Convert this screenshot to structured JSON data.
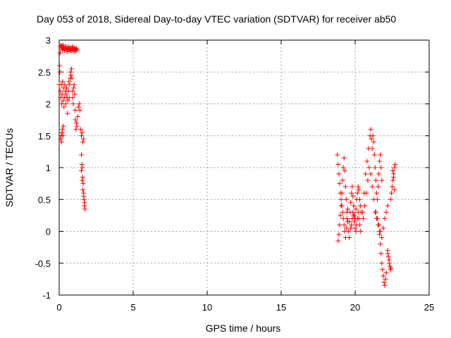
{
  "chart_data": {
    "type": "scatter",
    "title": "Day 053 of 2018, Sidereal Day-to-day VTEC variation (SDTVAR) for receiver ab50",
    "xlabel": "GPS time / hours",
    "ylabel": "SDTVAR / TECUs",
    "xlim": [
      0,
      25
    ],
    "ylim": [
      -1,
      3
    ],
    "xticks": [
      0,
      5,
      10,
      15,
      20,
      25
    ],
    "yticks": [
      -1,
      -0.5,
      0,
      0.5,
      1,
      1.5,
      2,
      2.5,
      3
    ],
    "xtick_labels": [
      "0",
      "5",
      "10",
      "15",
      "20",
      "25"
    ],
    "ytick_labels": [
      "-1",
      "-0.5",
      "0",
      "0.5",
      "1",
      "1.5",
      "2",
      "2.5",
      "3"
    ],
    "grid": true,
    "marker": "+",
    "color": "#ff0000",
    "series": [
      {
        "name": "SDTVAR",
        "x": [
          0.0,
          0.03,
          0.06,
          0.09,
          0.12,
          0.15,
          0.18,
          0.21,
          0.24,
          0.27,
          0.3,
          0.33,
          0.36,
          0.4,
          0.44,
          0.48,
          0.52,
          0.56,
          0.6,
          0.64,
          0.68,
          0.72,
          0.76,
          0.8,
          0.84,
          0.88,
          0.92,
          0.96,
          1.0,
          1.04,
          1.08,
          1.12,
          1.16,
          1.2,
          0.05,
          0.08,
          0.11,
          0.14,
          0.17,
          0.2,
          0.23,
          0.26,
          0.29,
          0.32,
          0.35,
          0.38,
          0.41,
          0.44,
          0.47,
          0.5,
          0.53,
          0.56,
          0.59,
          0.62,
          0.65,
          0.68,
          0.71,
          0.74,
          0.77,
          0.8,
          0.83,
          0.86,
          0.89,
          0.92,
          0.95,
          0.98,
          1.01,
          1.04,
          1.07,
          1.1,
          1.13,
          1.16,
          1.2,
          1.25,
          1.3,
          1.35,
          1.4,
          1.45,
          1.5,
          1.55,
          1.6,
          1.65,
          0.1,
          0.13,
          0.16,
          0.19,
          0.22,
          0.25,
          0.28,
          1.5,
          1.53,
          1.56,
          1.59,
          1.62,
          1.65,
          1.68,
          1.71,
          1.74,
          1.5,
          1.55,
          1.6,
          1.65,
          1.7,
          18.8,
          18.85,
          18.9,
          18.95,
          19.0,
          19.05,
          19.1,
          19.15,
          19.2,
          19.25,
          19.3,
          19.35,
          19.4,
          19.45,
          19.5,
          18.85,
          18.9,
          18.95,
          19.0,
          19.05,
          19.1,
          19.15,
          19.2,
          19.25,
          19.3,
          19.35,
          19.4,
          19.45,
          19.5,
          19.55,
          19.6,
          19.6,
          19.65,
          19.7,
          19.75,
          19.8,
          19.85,
          19.9,
          19.95,
          20.0,
          20.05,
          20.1,
          20.15,
          20.2,
          20.25,
          20.3,
          20.35,
          20.4,
          19.7,
          19.75,
          19.8,
          19.85,
          19.9,
          19.95,
          20.0,
          20.05,
          20.1,
          20.15,
          20.2,
          20.25,
          20.3,
          20.35,
          20.5,
          20.6,
          20.7,
          20.8,
          20.9,
          21.0,
          21.05,
          21.1,
          21.15,
          21.2,
          21.25,
          21.3,
          21.35,
          21.4,
          21.45,
          21.5,
          21.55,
          21.6,
          21.65,
          21.7,
          21.75,
          21.8,
          20.55,
          20.65,
          20.75,
          20.85,
          20.95,
          21.05,
          21.15,
          21.25,
          21.35,
          21.45,
          21.55,
          21.65,
          21.6,
          21.65,
          21.7,
          21.75,
          21.8,
          21.85,
          21.9,
          21.95,
          22.0,
          22.05,
          22.1,
          21.4,
          21.5,
          21.6,
          21.7,
          21.8,
          21.9,
          22.0,
          22.1,
          22.2,
          22.2,
          22.25,
          22.3,
          22.35,
          22.4,
          22.2,
          22.3,
          22.4,
          22.4,
          22.45,
          22.5,
          22.55,
          22.6,
          22.65,
          22.7,
          22.55,
          22.6,
          22.65
        ],
        "y": [
          2.3,
          2.6,
          2.8,
          2.9,
          2.92,
          2.88,
          2.9,
          2.85,
          2.92,
          2.88,
          2.9,
          2.86,
          2.84,
          2.88,
          2.9,
          2.85,
          2.87,
          2.82,
          2.9,
          2.86,
          2.85,
          2.88,
          2.83,
          2.87,
          2.84,
          2.9,
          2.86,
          2.85,
          2.88,
          2.82,
          2.86,
          2.84,
          2.87,
          2.85,
          2.5,
          2.2,
          2.1,
          2.3,
          2.0,
          2.15,
          2.35,
          2.05,
          2.25,
          1.95,
          2.1,
          2.3,
          2.2,
          2.0,
          2.15,
          2.25,
          2.1,
          1.85,
          2.05,
          2.2,
          2.35,
          2.1,
          2.3,
          2.4,
          2.5,
          2.45,
          2.55,
          2.4,
          2.2,
          2.1,
          2.0,
          2.25,
          2.3,
          2.15,
          1.9,
          1.75,
          1.6,
          1.7,
          1.65,
          1.8,
          1.95,
          2.0,
          1.9,
          1.6,
          1.5,
          1.55,
          1.4,
          1.45,
          1.45,
          1.5,
          1.4,
          1.55,
          1.6,
          1.5,
          1.65,
          1.2,
          1.05,
          1.0,
          0.85,
          0.75,
          0.6,
          0.5,
          0.45,
          0.35,
          0.95,
          0.8,
          0.65,
          0.55,
          0.4,
          1.2,
          1.05,
          0.9,
          0.75,
          0.6,
          0.5,
          0.4,
          0.3,
          0.2,
          0.1,
          0.0,
          -0.1,
          0.05,
          0.2,
          0.35,
          -0.15,
          -0.05,
          0.1,
          0.25,
          0.4,
          0.6,
          0.8,
          1.0,
          1.15,
          0.95,
          0.7,
          0.5,
          0.3,
          0.15,
          0.0,
          -0.1,
          0.15,
          0.3,
          0.45,
          0.6,
          0.7,
          0.55,
          0.4,
          0.25,
          0.2,
          0.35,
          0.5,
          0.6,
          0.7,
          0.65,
          0.5,
          0.4,
          0.3,
          0.05,
          0.1,
          0.2,
          0.3,
          0.25,
          0.15,
          0.05,
          0.0,
          0.1,
          0.2,
          0.3,
          0.2,
          0.1,
          0.0,
          0.3,
          0.6,
          0.9,
          1.1,
          1.3,
          1.5,
          1.6,
          1.45,
          1.3,
          1.5,
          1.4,
          1.2,
          1.0,
          0.8,
          0.6,
          0.5,
          0.7,
          0.9,
          1.1,
          1.2,
          1.0,
          0.8,
          0.2,
          0.4,
          0.6,
          0.8,
          1.0,
          0.9,
          0.7,
          0.5,
          0.3,
          0.2,
          0.1,
          0.0,
          0.1,
          -0.05,
          -0.2,
          -0.35,
          -0.5,
          -0.6,
          -0.7,
          -0.8,
          -0.85,
          -0.75,
          -0.65,
          0.3,
          0.2,
          0.1,
          0.0,
          -0.1,
          0.05,
          0.2,
          0.3,
          0.4,
          -0.3,
          -0.4,
          -0.5,
          -0.55,
          -0.6,
          -0.35,
          -0.45,
          -0.58,
          0.5,
          0.6,
          0.7,
          0.8,
          0.9,
          1.0,
          1.05,
          0.95,
          0.85,
          0.65
        ]
      }
    ]
  }
}
